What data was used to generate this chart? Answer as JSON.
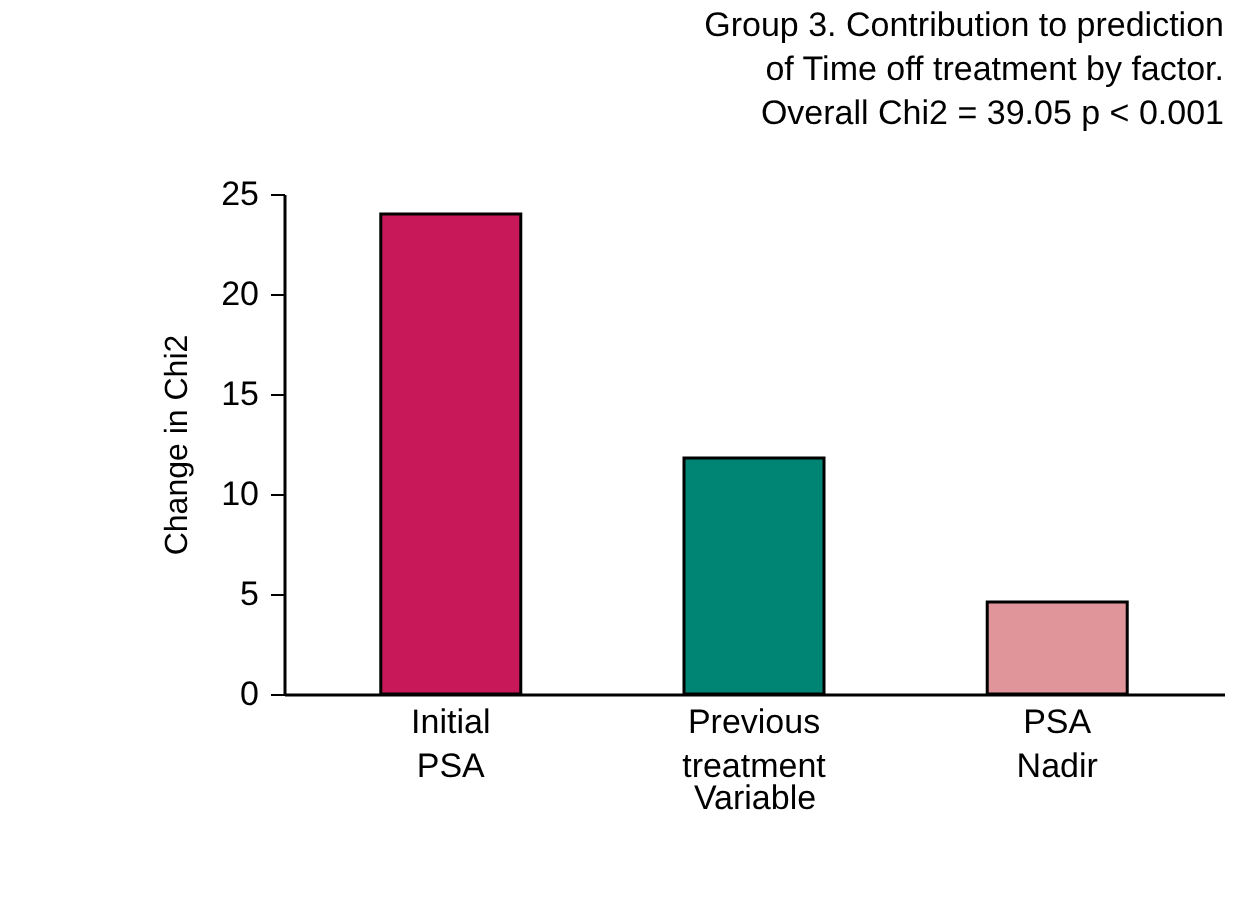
{
  "chart_data": {
    "type": "bar",
    "title": "Group 3. Contribution to prediction\nof Time off treatment by factor.\nOverall Chi2 = 39.05 p < 0.001",
    "xlabel": "Variable",
    "ylabel": "Change in Chi2",
    "categories": [
      "Initial\nPSA",
      "Previous\ntreatment",
      "PSA\nNadir"
    ],
    "values": [
      24,
      11.8,
      4.6
    ],
    "colors": [
      "#c8185a",
      "#008575",
      "#e0959a"
    ],
    "ylim": [
      0,
      25
    ],
    "yticks": [
      0,
      5,
      10,
      15,
      20,
      25
    ],
    "grid": false
  }
}
